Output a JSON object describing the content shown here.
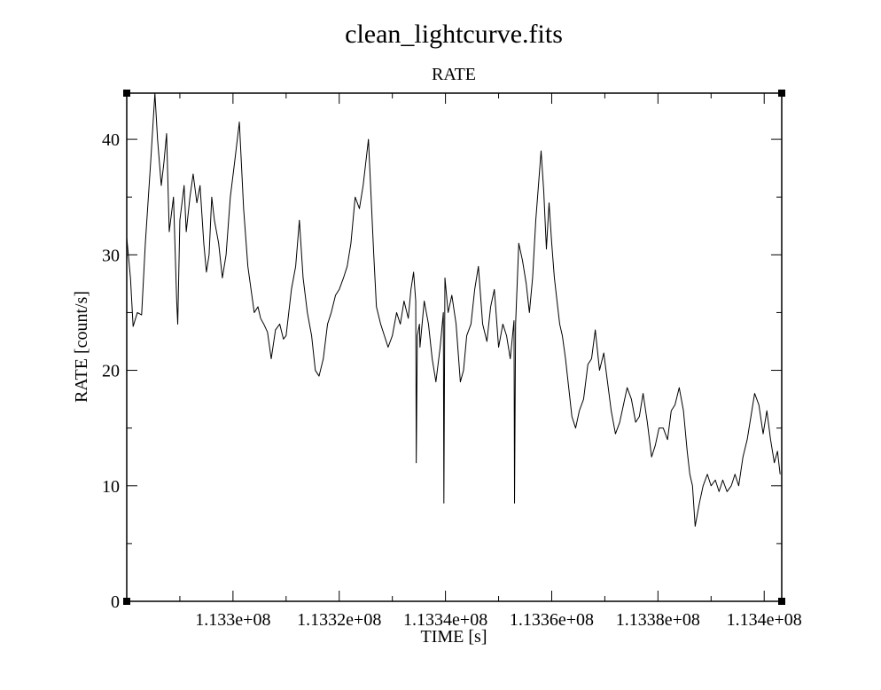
{
  "chart_data": {
    "type": "line",
    "title": "clean_lightcurve.fits",
    "subtitle": "RATE",
    "xlabel": "TIME [s]",
    "ylabel": "RATE [count/s]",
    "xlim": [
      113280000,
      113403300
    ],
    "ylim": [
      0,
      44
    ],
    "x_ticks": [
      113300000,
      113320000,
      113340000,
      113360000,
      113380000,
      113400000
    ],
    "x_tick_labels": [
      "1.133e+08",
      "1.1332e+08",
      "1.1334e+08",
      "1.1336e+08",
      "1.1338e+08",
      "1.134e+08"
    ],
    "y_ticks": [
      0,
      10,
      20,
      30,
      40
    ],
    "y_tick_labels": [
      "0",
      "10",
      "20",
      "30",
      "40"
    ],
    "grid": false,
    "legend": "none",
    "line_color": "#000000",
    "series": [
      {
        "x": [
          113280000,
          113280700,
          113281200,
          113282000,
          113282800,
          113283500,
          113284500,
          113285300,
          113285800,
          113286500,
          113287000,
          113287500,
          113288000,
          113288800,
          113289400,
          113289600,
          113290000,
          113290800,
          113291200,
          113291900,
          113292500,
          113293200,
          113293800,
          113294500,
          113295000,
          113295500,
          113296000,
          113296500,
          113297300,
          113298000,
          113298700,
          113299500,
          113300300,
          113301200,
          113302000,
          113302800,
          113303400,
          113304000,
          113304700,
          113305200,
          113305800,
          113306500,
          113307200,
          113308000,
          113308800,
          113309500,
          113310000,
          113310500,
          113311000,
          113311800,
          113312500,
          113313200,
          113314000,
          113314800,
          113315500,
          113316200,
          113317000,
          113317800,
          113318500,
          113319300,
          113320000,
          113320800,
          113321500,
          113322200,
          113323000,
          113323800,
          113324500,
          113325000,
          113325500,
          113326000,
          113326500,
          113327000,
          113327800,
          113328500,
          113329200,
          113330000,
          113330800,
          113331500,
          113332200,
          113333000,
          113333500,
          113334000,
          113334400,
          113334500,
          113334700,
          113335100,
          113335200,
          113335400,
          113336000,
          113336800,
          113337500,
          113338200,
          113339000,
          113339600,
          113339700,
          113339900,
          113340500,
          113341200,
          113342000,
          113342800,
          113343400,
          113344000,
          113344800,
          113345500,
          113346200,
          113347000,
          113347800,
          113348500,
          113349200,
          113350000,
          113350800,
          113351500,
          113352200,
          113352900,
          113353000,
          113353200,
          113353800,
          113354500,
          113355200,
          113355800,
          113356400,
          113357000,
          113357500,
          113358000,
          113358500,
          113359000,
          113359500,
          113360000,
          113360500,
          113361000,
          113361500,
          113362000,
          113362600,
          113363200,
          113363800,
          113364500,
          113365200,
          113366000,
          113366800,
          113367500,
          113368200,
          113369000,
          113369800,
          113370500,
          113371200,
          113372000,
          113372800,
          113373500,
          113374200,
          113375000,
          113375800,
          113376500,
          113377200,
          113378000,
          113378800,
          113379500,
          113380200,
          113381000,
          113381800,
          113382500,
          113383200,
          113384000,
          113384800,
          113385500,
          113386000,
          113386500,
          113387000,
          113387800,
          113388500,
          113389300,
          113390000,
          113390800,
          113391500,
          113392200,
          113393000,
          113393800,
          113394500,
          113395200,
          113396000,
          113396800,
          113397500,
          113398200,
          113399000,
          113399800,
          113400500,
          113401200,
          113401900,
          113402500,
          113403000
        ],
        "y": [
          31.5,
          28,
          23.8,
          25,
          24.8,
          31,
          38,
          44,
          40,
          36,
          38,
          40.5,
          32,
          35,
          26,
          24,
          33,
          36,
          32,
          35,
          37,
          34.5,
          36,
          31,
          28.5,
          30,
          35,
          33,
          31,
          28,
          30,
          35,
          38,
          41.5,
          34,
          29,
          27,
          25,
          25.5,
          24.5,
          24,
          23.3,
          21,
          23.5,
          24,
          22.7,
          23,
          25,
          27,
          29,
          33,
          28,
          25,
          23,
          20,
          19.5,
          21,
          24,
          25,
          26.5,
          27,
          28,
          29,
          31,
          35,
          34,
          36,
          38,
          40,
          35,
          30,
          25.5,
          24,
          23,
          22,
          23,
          25,
          24,
          26,
          24.5,
          27,
          28.5,
          26,
          12,
          23,
          24,
          22,
          23,
          26,
          24,
          21,
          19,
          22,
          25,
          8.5,
          28,
          25,
          26.5,
          24,
          19,
          20,
          23,
          24,
          27,
          29,
          24,
          22.5,
          25.5,
          27,
          22,
          24,
          23,
          21,
          24.3,
          8.5,
          24,
          31,
          29.5,
          27.5,
          25,
          28,
          33,
          36,
          39,
          35.5,
          30.5,
          34.5,
          31,
          28,
          26,
          24,
          23,
          21,
          18.5,
          16,
          15,
          16.5,
          17.5,
          20.5,
          21,
          23.5,
          20,
          21.5,
          19,
          16.5,
          14.5,
          15.5,
          17,
          18.5,
          17.5,
          15.5,
          16,
          18,
          15.5,
          12.5,
          13.5,
          15,
          15,
          14,
          16.5,
          17,
          18.5,
          16.5,
          13,
          11,
          10,
          6.5,
          8.5,
          10,
          11,
          10,
          10.5,
          9.5,
          10.5,
          9.5,
          10,
          11,
          10,
          12.5,
          14,
          16,
          18,
          17,
          14.5,
          16.5,
          14,
          12,
          13,
          11
        ]
      }
    ]
  }
}
